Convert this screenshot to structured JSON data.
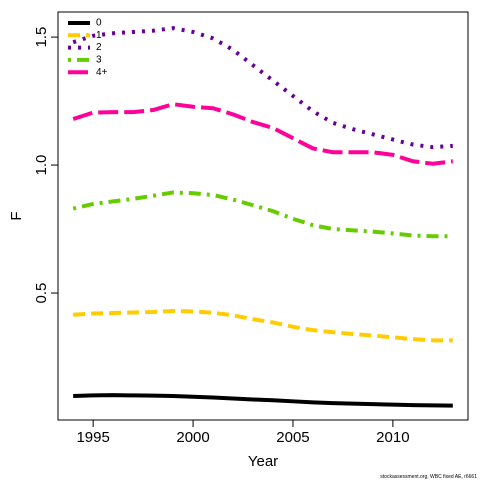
{
  "chart_data": {
    "type": "line",
    "x": [
      1994,
      1995,
      1996,
      1997,
      1998,
      1999,
      2000,
      2001,
      2002,
      2003,
      2004,
      2005,
      2006,
      2007,
      2008,
      2009,
      2010,
      2011,
      2012,
      2013
    ],
    "series": [
      {
        "name": "0",
        "color": "#000000",
        "dash": "solid",
        "values": [
          0.098,
          0.1,
          0.101,
          0.1,
          0.099,
          0.098,
          0.095,
          0.092,
          0.088,
          0.084,
          0.081,
          0.077,
          0.073,
          0.07,
          0.068,
          0.066,
          0.064,
          0.062,
          0.061,
          0.06
        ]
      },
      {
        "name": "1",
        "color": "#FFCC00",
        "dash": "dashed",
        "values": [
          0.415,
          0.42,
          0.422,
          0.424,
          0.426,
          0.43,
          0.428,
          0.423,
          0.413,
          0.398,
          0.385,
          0.368,
          0.355,
          0.347,
          0.34,
          0.334,
          0.327,
          0.32,
          0.315,
          0.315
        ]
      },
      {
        "name": "2",
        "color": "#660099",
        "dash": "dotted",
        "values": [
          1.48,
          1.505,
          1.515,
          1.52,
          1.525,
          1.535,
          1.52,
          1.495,
          1.45,
          1.39,
          1.33,
          1.27,
          1.21,
          1.165,
          1.14,
          1.12,
          1.1,
          1.08,
          1.07,
          1.075
        ]
      },
      {
        "name": "3",
        "color": "#66CC00",
        "dash": "dotdash",
        "values": [
          0.83,
          0.848,
          0.858,
          0.868,
          0.88,
          0.893,
          0.89,
          0.883,
          0.865,
          0.843,
          0.82,
          0.79,
          0.765,
          0.75,
          0.745,
          0.74,
          0.733,
          0.725,
          0.722,
          0.722
        ]
      },
      {
        "name": "4+",
        "color": "#FF0099",
        "dash": "longdash",
        "values": [
          1.18,
          1.205,
          1.207,
          1.207,
          1.215,
          1.238,
          1.228,
          1.222,
          1.198,
          1.168,
          1.145,
          1.105,
          1.065,
          1.05,
          1.05,
          1.05,
          1.04,
          1.015,
          1.005,
          1.015
        ]
      }
    ],
    "xlabel": "Year",
    "ylabel": "F",
    "xlim": [
      1993.24,
      2013.76
    ],
    "xticks": [
      1995,
      2000,
      2005,
      2010
    ],
    "ylim": [
      0.004,
      1.598
    ],
    "yticks": [
      0.5,
      {
        "value": 1,
        "label": "1.0"
      },
      1.5
    ],
    "legend": "top-left",
    "footnote": "stockassessment.org, WBC fixed AE, r6661"
  }
}
